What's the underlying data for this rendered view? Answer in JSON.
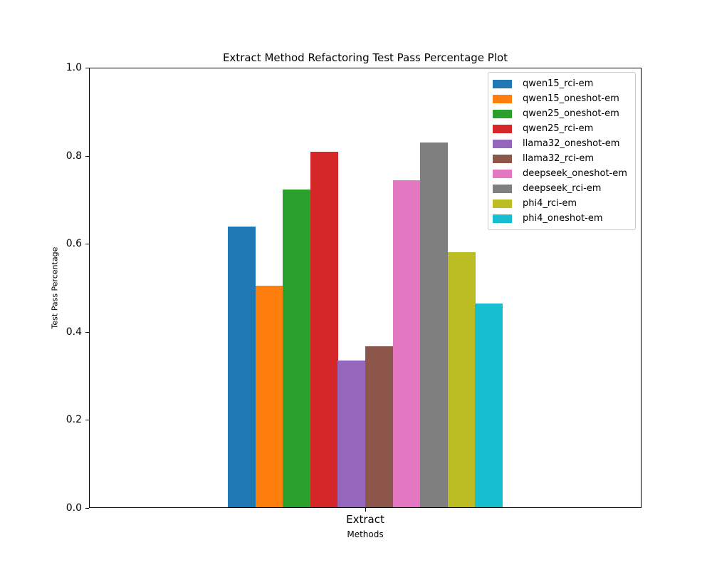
{
  "chart_data": {
    "type": "bar",
    "title": "Extract Method Refactoring Test Pass Percentage Plot",
    "xlabel": "Methods",
    "ylabel": "Test Pass Percentage",
    "categories": [
      "Extract"
    ],
    "ylim": [
      0.0,
      1.0
    ],
    "yticks": [
      0.0,
      0.2,
      0.4,
      0.6,
      0.8,
      1.0
    ],
    "ytick_labels": [
      "0.0",
      "0.2",
      "0.4",
      "0.6",
      "0.8",
      "1.0"
    ],
    "grid": false,
    "legend_position": "upper right",
    "series": [
      {
        "name": "qwen15_rci-em",
        "color": "#1f77b4",
        "values": [
          0.638
        ]
      },
      {
        "name": "qwen15_oneshot-em",
        "color": "#ff7f0e",
        "values": [
          0.503
        ]
      },
      {
        "name": "qwen25_oneshot-em",
        "color": "#2ca02c",
        "values": [
          0.721
        ]
      },
      {
        "name": "qwen25_rci-em",
        "color": "#d62728",
        "values": [
          0.807
        ]
      },
      {
        "name": "llama32_oneshot-em",
        "color": "#9467bd",
        "values": [
          0.334
        ]
      },
      {
        "name": "llama32_rci-em",
        "color": "#8c564b",
        "values": [
          0.365
        ]
      },
      {
        "name": "deepseek_oneshot-em",
        "color": "#e377c2",
        "values": [
          0.743
        ]
      },
      {
        "name": "deepseek_rci-em",
        "color": "#7f7f7f",
        "values": [
          0.828
        ]
      },
      {
        "name": "phi4_rci-em",
        "color": "#bcbd22",
        "values": [
          0.579
        ]
      },
      {
        "name": "phi4_oneshot-em",
        "color": "#17becf",
        "values": [
          0.463
        ]
      }
    ]
  }
}
